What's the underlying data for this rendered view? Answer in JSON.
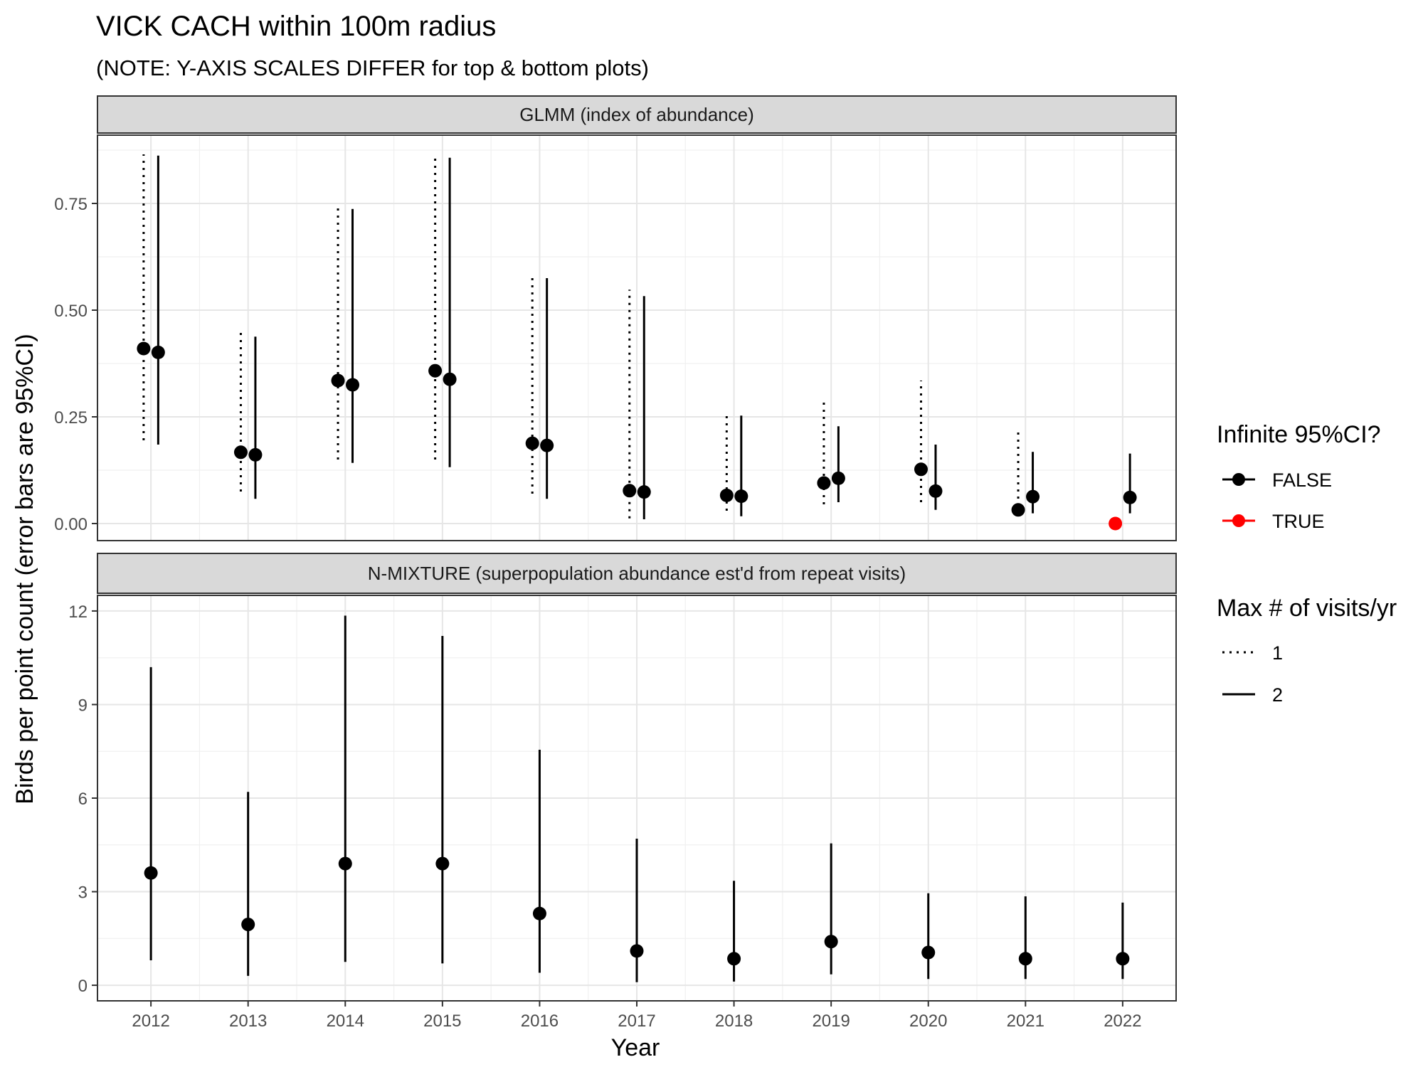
{
  "title": "VICK CACH within 100m radius",
  "subtitle": "(NOTE: Y-AXIS SCALES DIFFER for top & bottom plots)",
  "xlabel": "Year",
  "ylabel": "Birds per point count (error bars are 95%CI)",
  "years": [
    "2012",
    "2013",
    "2014",
    "2015",
    "2016",
    "2017",
    "2018",
    "2019",
    "2020",
    "2021",
    "2022"
  ],
  "legend": {
    "infinite": {
      "title": "Infinite 95%CI?",
      "items": [
        {
          "label": "FALSE",
          "color": "#000000"
        },
        {
          "label": "TRUE",
          "color": "#ff0000"
        }
      ]
    },
    "visits": {
      "title": "Max # of visits/yr",
      "items": [
        {
          "label": "1",
          "linetype": "dotted"
        },
        {
          "label": "2",
          "linetype": "solid"
        }
      ]
    }
  },
  "chart_data": [
    {
      "type": "scatter",
      "panel": "GLMM (index of abundance)",
      "ylim": [
        -0.04,
        0.91
      ],
      "yticks": [
        "0.00",
        "0.25",
        "0.50",
        "0.75"
      ],
      "grid": true,
      "series": [
        {
          "name": "1",
          "linetype": "dotted",
          "points": [
            {
              "year": 2012,
              "est": 0.41,
              "lo": 0.195,
              "hi": 0.865,
              "infinite": false
            },
            {
              "year": 2013,
              "est": 0.167,
              "lo": 0.075,
              "hi": 0.448,
              "infinite": false
            },
            {
              "year": 2014,
              "est": 0.335,
              "lo": 0.15,
              "hi": 0.747,
              "infinite": false
            },
            {
              "year": 2015,
              "est": 0.358,
              "lo": 0.15,
              "hi": 0.86,
              "infinite": false
            },
            {
              "year": 2016,
              "est": 0.188,
              "lo": 0.07,
              "hi": 0.585,
              "infinite": false
            },
            {
              "year": 2017,
              "est": 0.077,
              "lo": 0.012,
              "hi": 0.548,
              "infinite": false
            },
            {
              "year": 2018,
              "est": 0.066,
              "lo": 0.03,
              "hi": 0.26,
              "infinite": false
            },
            {
              "year": 2019,
              "est": 0.095,
              "lo": 0.045,
              "hi": 0.292,
              "infinite": false
            },
            {
              "year": 2020,
              "est": 0.127,
              "lo": 0.05,
              "hi": 0.335,
              "infinite": false
            },
            {
              "year": 2021,
              "est": 0.032,
              "lo": 0.025,
              "hi": 0.225,
              "infinite": false
            },
            {
              "year": 2022,
              "est": 0.0,
              "lo": null,
              "hi": null,
              "infinite": true
            }
          ]
        },
        {
          "name": "2",
          "linetype": "solid",
          "points": [
            {
              "year": 2012,
              "est": 0.401,
              "lo": 0.185,
              "hi": 0.862,
              "infinite": false
            },
            {
              "year": 2013,
              "est": 0.161,
              "lo": 0.058,
              "hi": 0.438,
              "infinite": false
            },
            {
              "year": 2014,
              "est": 0.325,
              "lo": 0.142,
              "hi": 0.737,
              "infinite": false
            },
            {
              "year": 2015,
              "est": 0.338,
              "lo": 0.132,
              "hi": 0.857,
              "infinite": false
            },
            {
              "year": 2016,
              "est": 0.183,
              "lo": 0.058,
              "hi": 0.575,
              "infinite": false
            },
            {
              "year": 2017,
              "est": 0.074,
              "lo": 0.01,
              "hi": 0.533,
              "infinite": false
            },
            {
              "year": 2018,
              "est": 0.064,
              "lo": 0.017,
              "hi": 0.253,
              "infinite": false
            },
            {
              "year": 2019,
              "est": 0.106,
              "lo": 0.05,
              "hi": 0.228,
              "infinite": false
            },
            {
              "year": 2020,
              "est": 0.076,
              "lo": 0.032,
              "hi": 0.185,
              "infinite": false
            },
            {
              "year": 2021,
              "est": 0.063,
              "lo": 0.024,
              "hi": 0.168,
              "infinite": false
            },
            {
              "year": 2022,
              "est": 0.061,
              "lo": 0.024,
              "hi": 0.164,
              "infinite": false
            }
          ]
        }
      ]
    },
    {
      "type": "scatter",
      "panel": "N-MIXTURE (superpopulation abundance est'd from repeat visits)",
      "ylim": [
        -0.5,
        12.5
      ],
      "yticks": [
        "0",
        "3",
        "6",
        "9",
        "12"
      ],
      "grid": true,
      "series": [
        {
          "name": "2",
          "linetype": "solid",
          "points": [
            {
              "year": 2012,
              "est": 3.6,
              "lo": 0.8,
              "hi": 10.2,
              "infinite": false
            },
            {
              "year": 2013,
              "est": 1.95,
              "lo": 0.3,
              "hi": 6.2,
              "infinite": false
            },
            {
              "year": 2014,
              "est": 3.9,
              "lo": 0.75,
              "hi": 11.85,
              "infinite": false
            },
            {
              "year": 2015,
              "est": 3.9,
              "lo": 0.7,
              "hi": 11.2,
              "infinite": false
            },
            {
              "year": 2016,
              "est": 2.3,
              "lo": 0.4,
              "hi": 7.55,
              "infinite": false
            },
            {
              "year": 2017,
              "est": 1.1,
              "lo": 0.1,
              "hi": 4.7,
              "infinite": false
            },
            {
              "year": 2018,
              "est": 0.85,
              "lo": 0.12,
              "hi": 3.35,
              "infinite": false
            },
            {
              "year": 2019,
              "est": 1.4,
              "lo": 0.35,
              "hi": 4.55,
              "infinite": false
            },
            {
              "year": 2020,
              "est": 1.05,
              "lo": 0.2,
              "hi": 2.95,
              "infinite": false
            },
            {
              "year": 2021,
              "est": 0.85,
              "lo": 0.2,
              "hi": 2.85,
              "infinite": false
            },
            {
              "year": 2022,
              "est": 0.85,
              "lo": 0.2,
              "hi": 2.65,
              "infinite": false
            }
          ]
        }
      ]
    }
  ]
}
